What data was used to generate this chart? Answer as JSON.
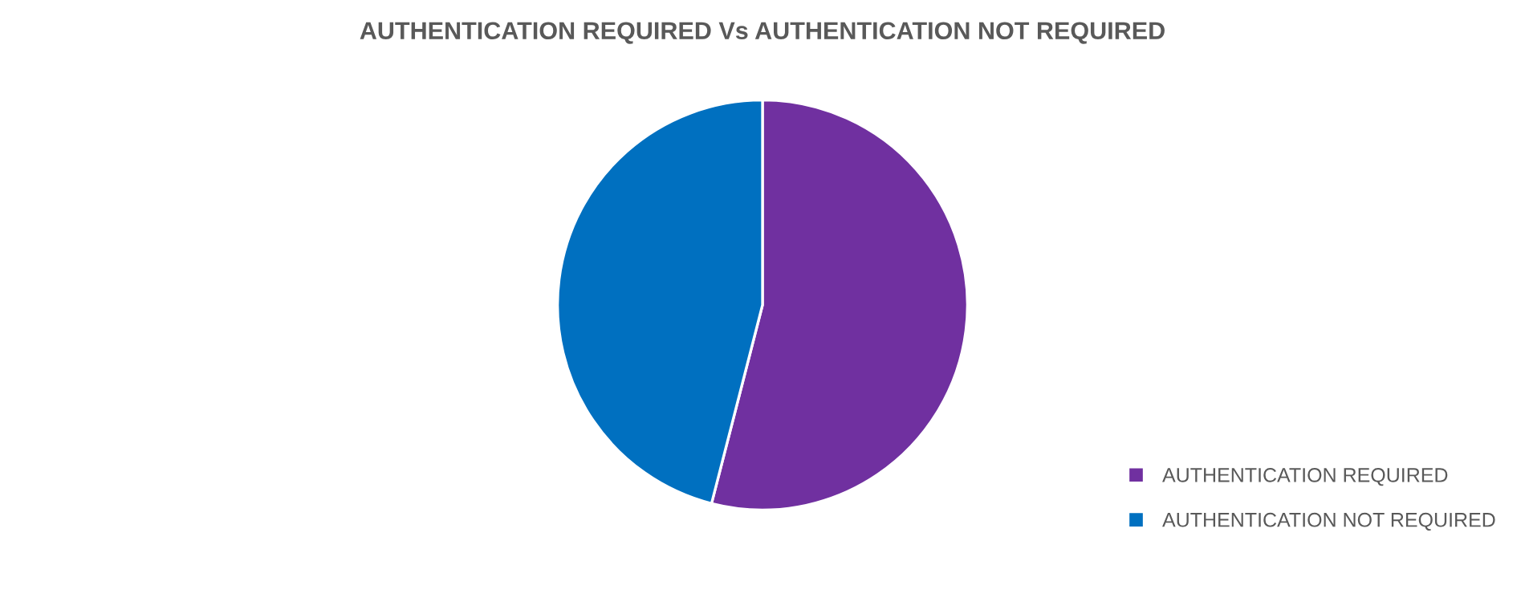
{
  "chart_data": {
    "type": "pie",
    "title": "AUTHENTICATION REQUIRED Vs AUTHENTICATION NOT REQUIRED",
    "categories": [
      "AUTHENTICATION REQUIRED",
      "AUTHENTICATION NOT REQUIRED"
    ],
    "values": [
      54,
      46
    ],
    "colors": [
      "#7030a0",
      "#0070c0"
    ],
    "legend": "right"
  }
}
